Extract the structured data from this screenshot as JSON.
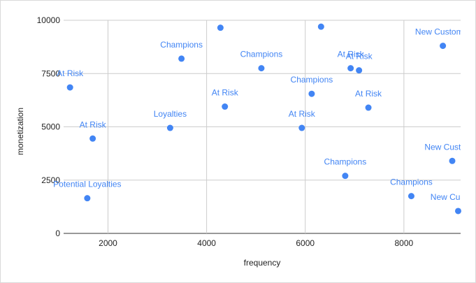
{
  "chart_data": {
    "type": "scatter",
    "xlabel": "frequency",
    "ylabel": "monetization",
    "xlim": [
      1100,
      9150
    ],
    "ylim": [
      0,
      10000
    ],
    "x_ticks": [
      2000,
      4000,
      6000,
      8000
    ],
    "y_ticks": [
      0,
      2500,
      5000,
      7500,
      10000
    ],
    "grid": true,
    "point_color": "#4285f4",
    "points": [
      {
        "x": 1230,
        "y": 6850,
        "label": "At Risk"
      },
      {
        "x": 1580,
        "y": 1650,
        "label": "Potential Loyalties"
      },
      {
        "x": 1690,
        "y": 4450,
        "label": "At Risk"
      },
      {
        "x": 3260,
        "y": 4950,
        "label": "Loyalties"
      },
      {
        "x": 3490,
        "y": 8200,
        "label": "Champions"
      },
      {
        "x": 4280,
        "y": 9650,
        "label": ""
      },
      {
        "x": 4370,
        "y": 5950,
        "label": "At Risk"
      },
      {
        "x": 5110,
        "y": 7750,
        "label": "Champions"
      },
      {
        "x": 5930,
        "y": 4950,
        "label": "At Risk"
      },
      {
        "x": 6130,
        "y": 6550,
        "label": "Champions"
      },
      {
        "x": 6320,
        "y": 9700,
        "label": ""
      },
      {
        "x": 6810,
        "y": 2700,
        "label": "Champions"
      },
      {
        "x": 6920,
        "y": 7750,
        "label": "At Risk"
      },
      {
        "x": 7090,
        "y": 7650,
        "label": "At Risk"
      },
      {
        "x": 7280,
        "y": 5900,
        "label": "At Risk"
      },
      {
        "x": 8150,
        "y": 1750,
        "label": "Champions"
      },
      {
        "x": 8790,
        "y": 8800,
        "label": "New Customer"
      },
      {
        "x": 8980,
        "y": 3400,
        "label": "New Customer"
      },
      {
        "x": 9100,
        "y": 1050,
        "label": "New Customer"
      }
    ]
  }
}
